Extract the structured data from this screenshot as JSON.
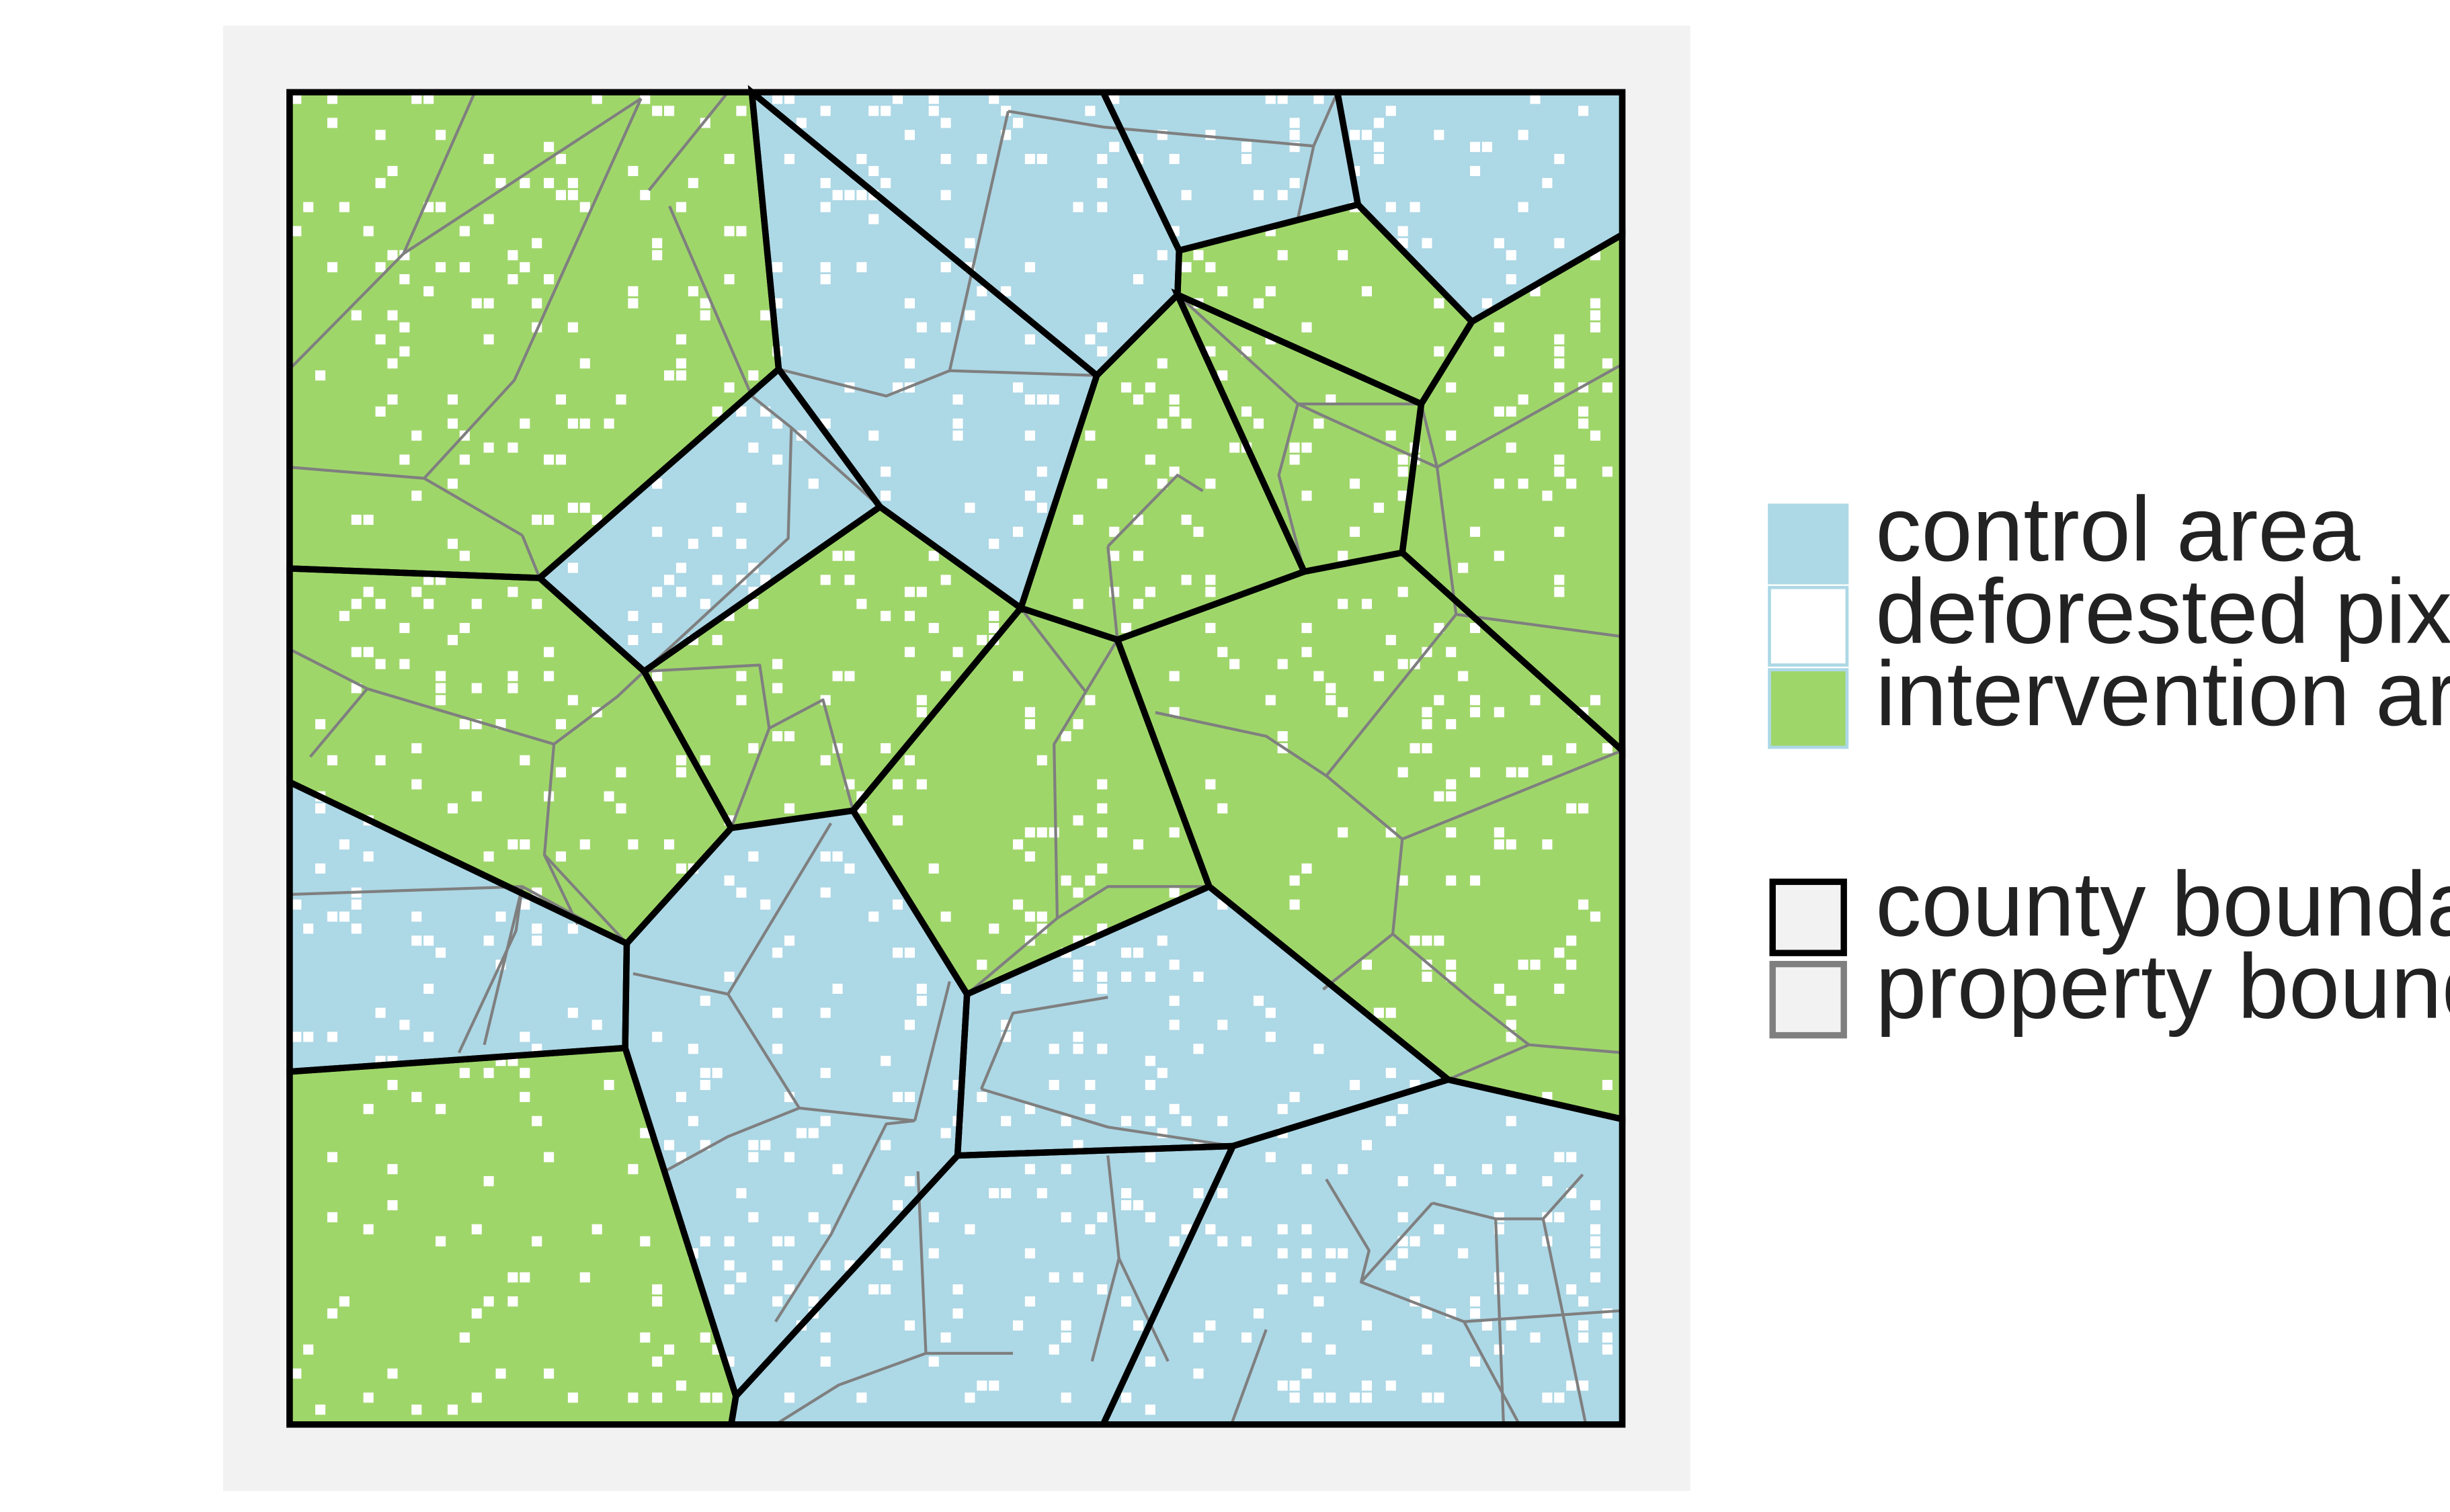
{
  "legend": {
    "fill_items": [
      {
        "label": "control area",
        "swatch_color": "#add8e6"
      },
      {
        "label": "deforested pixel",
        "swatch_color": "#ffffff"
      },
      {
        "label": "intervention area",
        "swatch_color": "#9fd66a"
      }
    ],
    "line_items": [
      {
        "label": "county boundaries",
        "line_color": "#000000"
      },
      {
        "label": "property boundaries",
        "line_color": "#7f7f7f"
      }
    ]
  },
  "colors": {
    "control": "#add8e6",
    "intervention": "#9fd66a",
    "deforested": "#ffffff",
    "panel_background": "#f2f2f2",
    "county_line": "#000000",
    "property_line": "#7f7f7f",
    "legend_swatch_border": "#add8e6",
    "line_swatch_fill": "#f2f2f2"
  }
}
